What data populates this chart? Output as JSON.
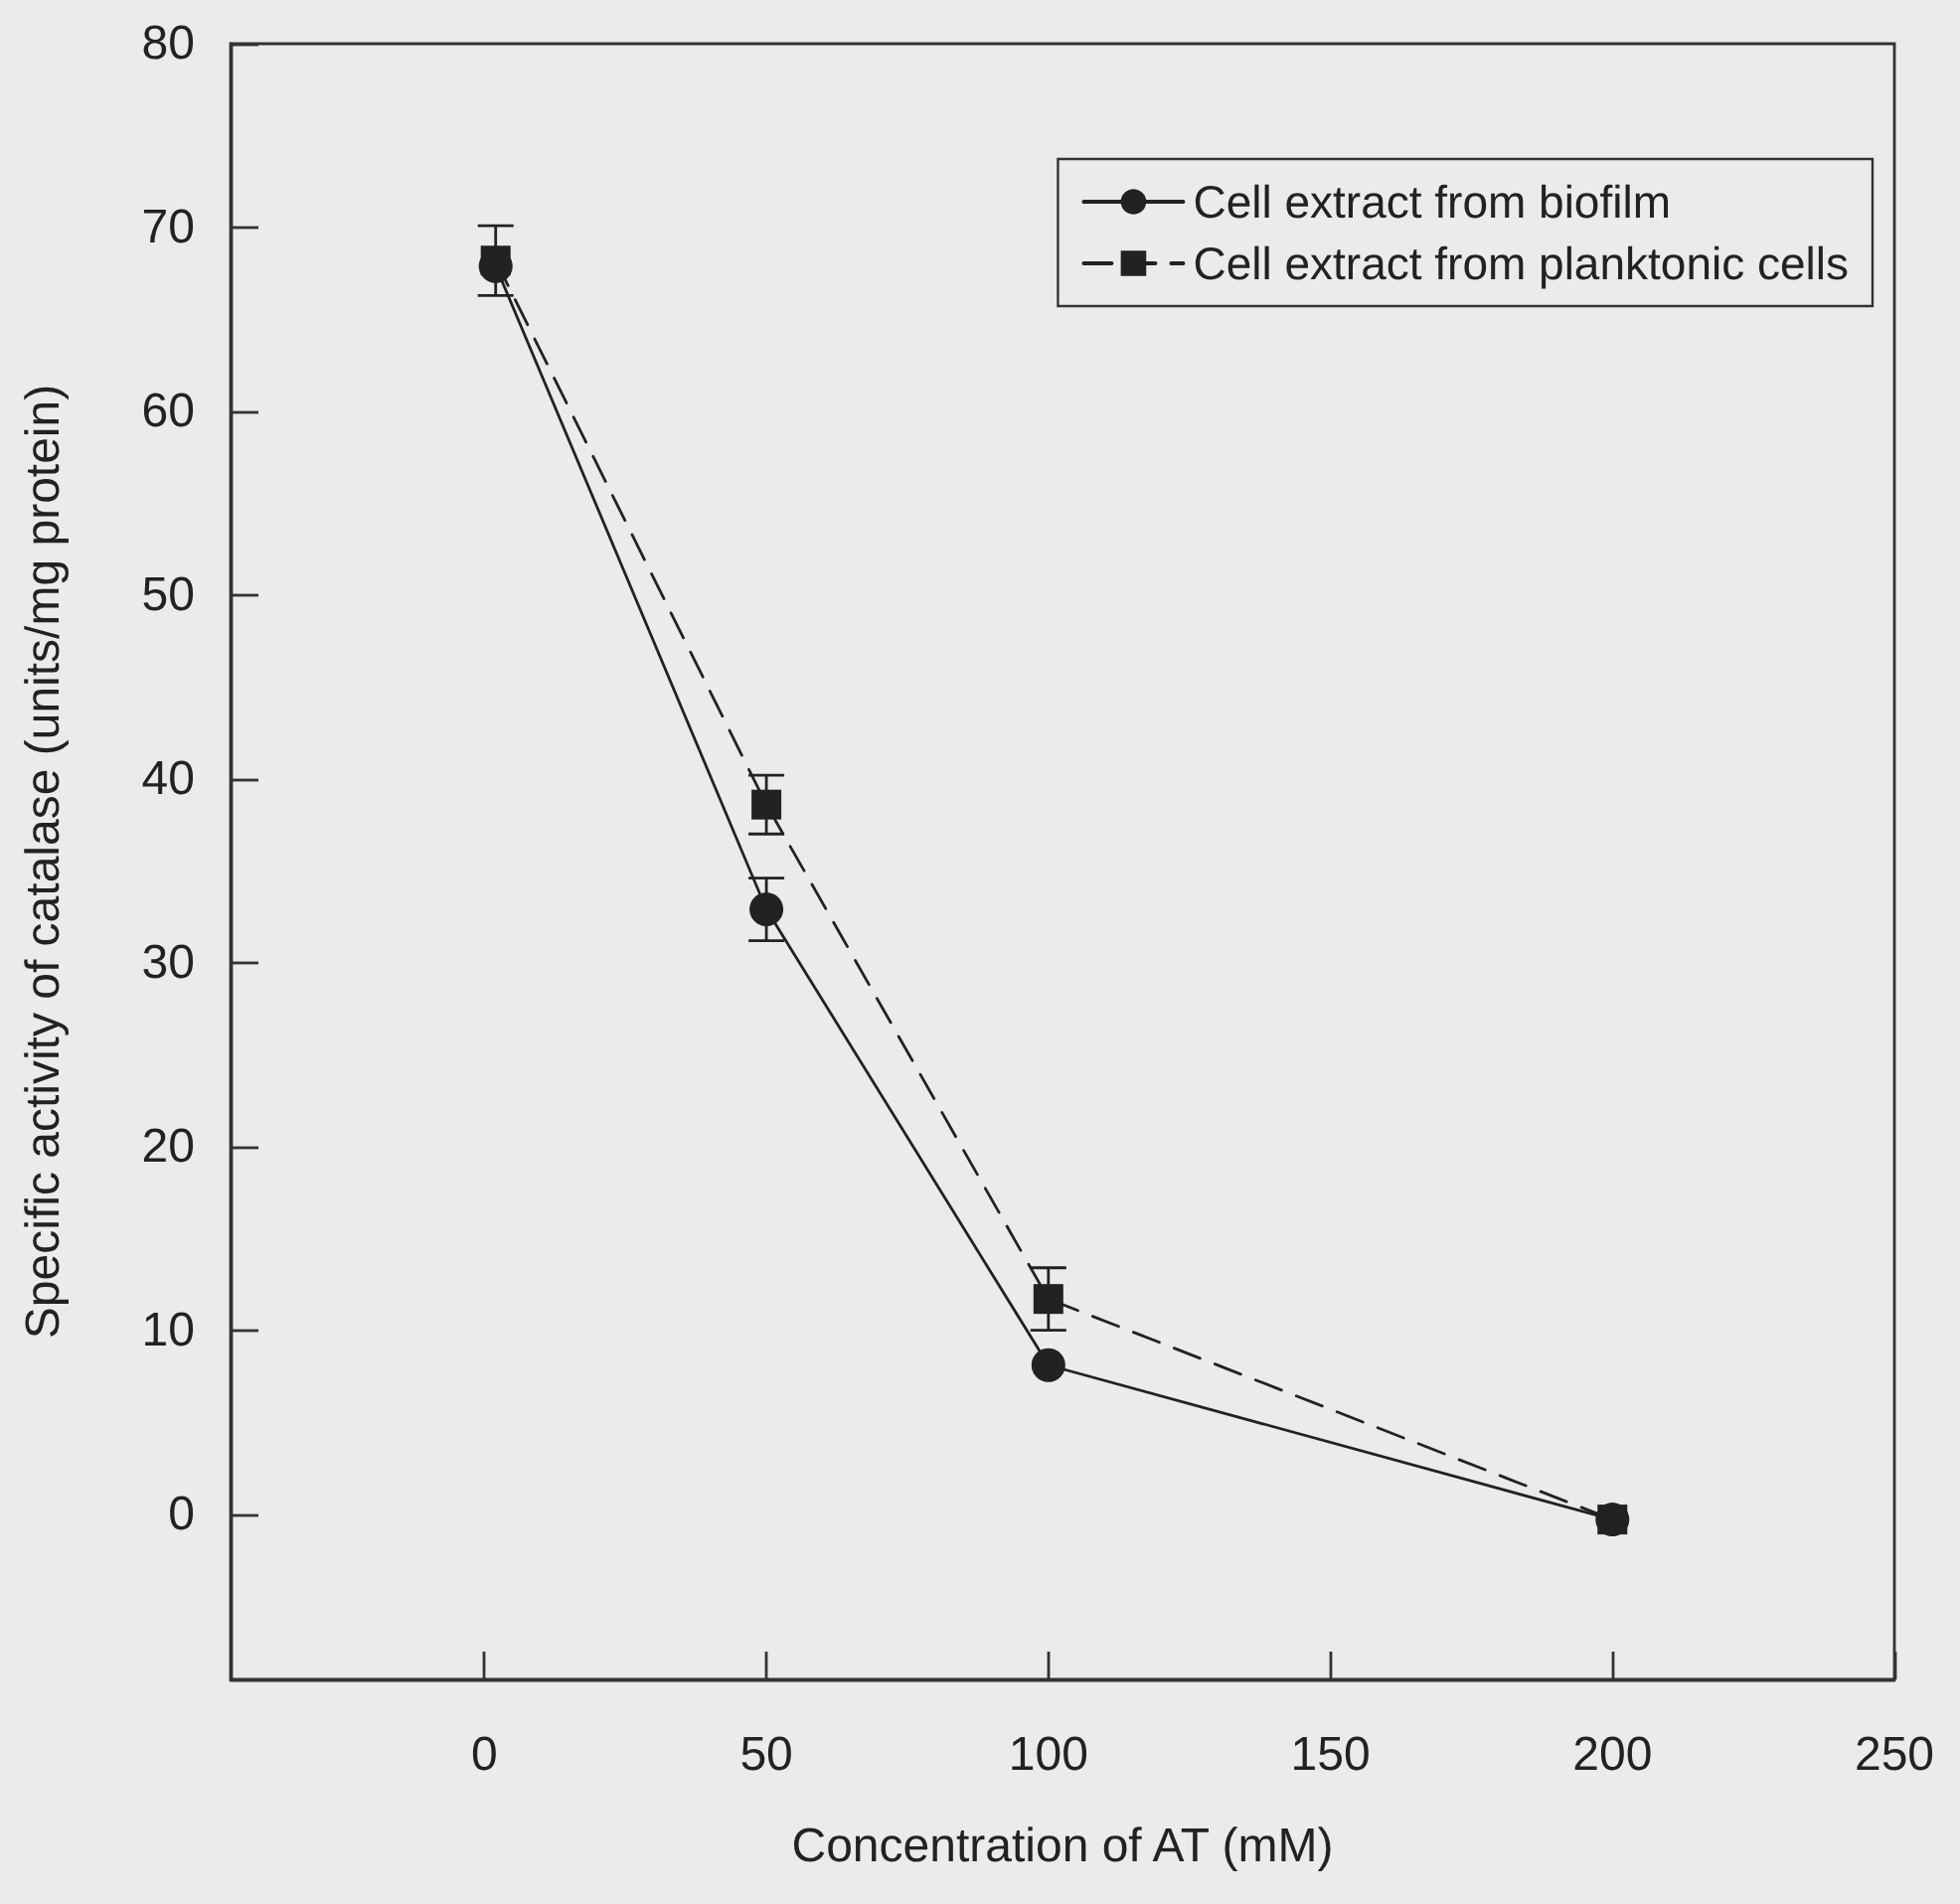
{
  "chart_data": {
    "type": "line",
    "xlabel": "Concentration of AT (mM)",
    "ylabel": "Specific activity of catalase (units/mg protein)",
    "x": [
      2,
      50,
      100,
      200
    ],
    "series": [
      {
        "name": "Cell extract from biofilm",
        "color": "#222222",
        "marker": "circle",
        "line_style": "solid",
        "values": [
          67.9,
          32.9,
          8.1,
          -0.3
        ],
        "errors": [
          null,
          1.7,
          null,
          null
        ]
      },
      {
        "name": "Cell extract from planktonic cells",
        "color": "#222222",
        "marker": "square",
        "line_style": "dashed",
        "values": [
          68.2,
          38.6,
          11.7,
          -0.3
        ],
        "errors": [
          1.9,
          1.6,
          1.7,
          null
        ]
      }
    ],
    "xlim": [
      -45,
      250
    ],
    "xticks": [
      0,
      50,
      100,
      150,
      200,
      250
    ],
    "ylim": [
      -9,
      80
    ],
    "yticks": [
      0,
      10,
      20,
      30,
      40,
      50,
      60,
      70,
      80
    ],
    "grid": false,
    "legend": "top right"
  }
}
